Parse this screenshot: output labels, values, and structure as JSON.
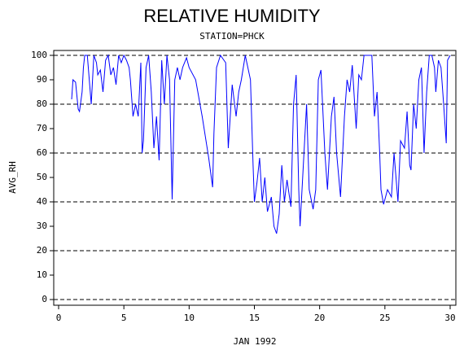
{
  "chart_data": {
    "type": "line",
    "title": "RELATIVE HUMIDITY",
    "subtitle": "STATION=PHCK",
    "x_label": "JAN 1992",
    "y_label": "AVG_RH",
    "color": "#0000ff",
    "x": [
      1.0,
      1.1,
      1.3,
      1.5,
      1.6,
      1.8,
      1.9,
      2.0,
      2.2,
      2.5,
      2.7,
      2.9,
      3.0,
      3.2,
      3.4,
      3.6,
      3.8,
      4.0,
      4.2,
      4.4,
      4.6,
      4.8,
      5.0,
      5.2,
      5.4,
      5.5,
      5.7,
      5.9,
      6.1,
      6.3,
      6.4,
      6.5,
      6.7,
      6.9,
      7.1,
      7.3,
      7.5,
      7.7,
      7.9,
      8.1,
      8.3,
      8.5,
      8.7,
      8.9,
      9.1,
      9.3,
      9.5,
      9.8,
      10.0,
      10.5,
      11.0,
      11.5,
      11.8,
      11.9,
      12.1,
      12.4,
      12.8,
      13.0,
      13.3,
      13.6,
      13.8,
      14.0,
      14.3,
      14.7,
      14.9,
      15.0,
      15.2,
      15.4,
      15.6,
      15.8,
      16.0,
      16.3,
      16.5,
      16.7,
      16.9,
      17.1,
      17.3,
      17.5,
      17.8,
      18.0,
      18.2,
      18.4,
      18.5,
      18.7,
      19.0,
      19.2,
      19.5,
      19.7,
      19.9,
      20.1,
      20.4,
      20.6,
      20.9,
      21.1,
      21.3,
      21.6,
      21.9,
      22.1,
      22.3,
      22.5,
      22.8,
      23.0,
      23.2,
      23.4,
      24.0,
      24.2,
      24.4,
      24.6,
      24.7,
      24.9,
      25.2,
      25.5,
      25.7,
      26.0,
      26.2,
      26.5,
      26.7,
      26.9,
      27.0,
      27.2,
      27.4,
      27.6,
      27.8,
      28.0,
      28.2,
      28.4,
      28.6,
      28.8,
      28.9,
      29.1,
      29.3,
      29.5,
      29.7,
      29.8,
      30.0
    ],
    "values": [
      82,
      90,
      89,
      78,
      77,
      85,
      95,
      100,
      100,
      80,
      100,
      97,
      92,
      94,
      85,
      98,
      100,
      92,
      95,
      88,
      100,
      97,
      100,
      98,
      95,
      90,
      75,
      80,
      75,
      97,
      60,
      65,
      95,
      100,
      85,
      62,
      75,
      57,
      98,
      80,
      100,
      90,
      41,
      90,
      95,
      90,
      95,
      99,
      95,
      90,
      75,
      58,
      46,
      68,
      95,
      100,
      97,
      62,
      88,
      75,
      85,
      90,
      100,
      90,
      55,
      40,
      48,
      58,
      40,
      50,
      36,
      42,
      30,
      27,
      35,
      55,
      40,
      49,
      38,
      80,
      92,
      45,
      30,
      50,
      80,
      45,
      37,
      45,
      90,
      94,
      60,
      45,
      75,
      83,
      60,
      42,
      75,
      90,
      85,
      96,
      70,
      92,
      90,
      100,
      100,
      75,
      85,
      60,
      45,
      39,
      45,
      42,
      60,
      40,
      65,
      62,
      77,
      55,
      53,
      80,
      70,
      90,
      95,
      60,
      85,
      100,
      100,
      95,
      85,
      98,
      95,
      80,
      64,
      98,
      100
    ],
    "xlim": [
      0,
      30
    ],
    "xticks": [
      0,
      5,
      10,
      15,
      20,
      25,
      30
    ],
    "ylim": [
      0,
      100
    ],
    "yticks": [
      0,
      10,
      20,
      30,
      40,
      50,
      60,
      70,
      80,
      90,
      100
    ],
    "ygrid": [
      0,
      20,
      40,
      60,
      80,
      100
    ]
  }
}
